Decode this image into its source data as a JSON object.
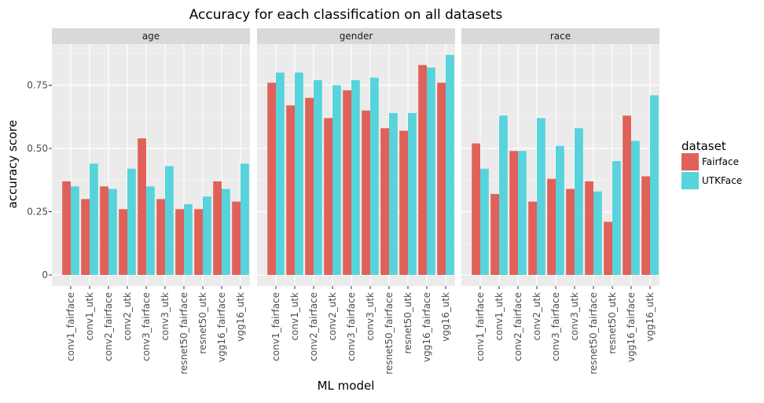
{
  "chart_data": {
    "type": "bar",
    "title": "Accuracy for each classification on all datasets",
    "xlabel": "ML model",
    "ylabel": "accuracy score",
    "ylim": [
      0,
      0.9
    ],
    "yticks": [
      0,
      0.25,
      0.5,
      0.75
    ],
    "ytick_labels": [
      "0",
      "0.25",
      "0.50",
      "0.75"
    ],
    "grid": true,
    "legend": {
      "title": "dataset",
      "position": "right",
      "entries": [
        {
          "name": "Fairface",
          "color": "#e06159"
        },
        {
          "name": "UTKFace",
          "color": "#57d3db"
        }
      ]
    },
    "categories": [
      "conv1_fairface",
      "conv1_utk",
      "conv2_fairface",
      "conv2_utk",
      "conv3_fairface",
      "conv3_utk",
      "resnet50_fairface",
      "resnet50_utk",
      "vgg16_fairface",
      "vgg16_utk"
    ],
    "facets": [
      {
        "label": "age",
        "series": [
          {
            "name": "Fairface",
            "values": [
              0.37,
              0.3,
              0.35,
              0.26,
              0.54,
              0.3,
              0.26,
              0.26,
              0.37,
              0.29
            ]
          },
          {
            "name": "UTKFace",
            "values": [
              0.35,
              0.44,
              0.34,
              0.42,
              0.35,
              0.43,
              0.28,
              0.31,
              0.34,
              0.44
            ]
          }
        ]
      },
      {
        "label": "gender",
        "series": [
          {
            "name": "Fairface",
            "values": [
              0.76,
              0.67,
              0.7,
              0.62,
              0.73,
              0.65,
              0.58,
              0.57,
              0.83,
              0.76
            ]
          },
          {
            "name": "UTKFace",
            "values": [
              0.8,
              0.8,
              0.77,
              0.75,
              0.77,
              0.78,
              0.64,
              0.64,
              0.82,
              0.87
            ]
          }
        ]
      },
      {
        "label": "race",
        "series": [
          {
            "name": "Fairface",
            "values": [
              0.52,
              0.32,
              0.49,
              0.29,
              0.38,
              0.34,
              0.37,
              0.21,
              0.63,
              0.39
            ]
          },
          {
            "name": "UTKFace",
            "values": [
              0.42,
              0.63,
              0.49,
              0.62,
              0.51,
              0.58,
              0.33,
              0.45,
              0.53,
              0.71
            ]
          }
        ]
      }
    ]
  }
}
